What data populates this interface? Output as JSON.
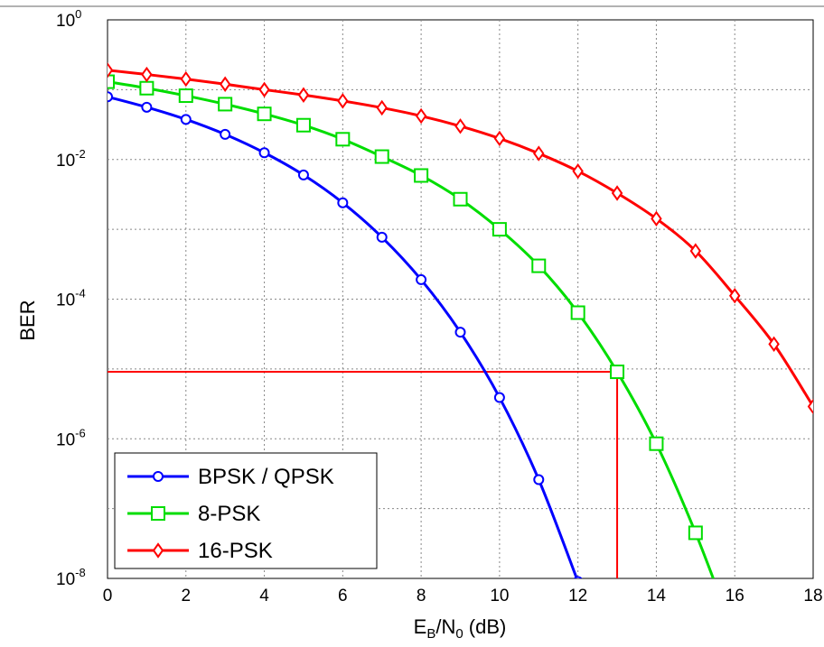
{
  "chart_data": {
    "type": "line",
    "xlabel": {
      "base": "E",
      "sub1": "B",
      "mid": "/N",
      "sub2": "0",
      "tail": " (dB)"
    },
    "ylabel": "BER",
    "xlim": [
      0,
      18
    ],
    "ylim": [
      1e-08,
      1
    ],
    "yscale": "log",
    "x_ticks": [
      0,
      2,
      4,
      6,
      8,
      10,
      12,
      14,
      16,
      18
    ],
    "y_ticks": [
      {
        "base": "10",
        "exp": "0",
        "value": 1
      },
      {
        "base": "10",
        "exp": "-2",
        "value": 0.01
      },
      {
        "base": "10",
        "exp": "-4",
        "value": 0.0001
      },
      {
        "base": "10",
        "exp": "-6",
        "value": 1e-06
      },
      {
        "base": "10",
        "exp": "-8",
        "value": 1e-08
      }
    ],
    "grid": true,
    "legend_position": "bottom-left",
    "series": [
      {
        "name": "BPSK / QPSK",
        "color": "#0000ff",
        "marker": "circle",
        "x": [
          0,
          1,
          2,
          3,
          4,
          5,
          6,
          7,
          8,
          9,
          10,
          11,
          12
        ],
        "y": [
          0.079,
          0.056,
          0.0375,
          0.0229,
          0.0125,
          0.006,
          0.0024,
          0.00077,
          0.00019,
          3.36e-05,
          3.9e-06,
          2.6e-07,
          9e-09
        ]
      },
      {
        "name": "8-PSK",
        "color": "#00dd00",
        "marker": "square",
        "x": [
          0,
          1,
          2,
          3,
          4,
          5,
          6,
          7,
          8,
          9,
          10,
          11,
          12,
          13,
          14,
          15,
          16
        ],
        "y": [
          0.13,
          0.105,
          0.082,
          0.062,
          0.045,
          0.031,
          0.0195,
          0.011,
          0.0059,
          0.0027,
          0.001,
          0.0003,
          6.4e-05,
          9.1e-06,
          8.5e-07,
          4.5e-08,
          1.5e-09
        ]
      },
      {
        "name": "16-PSK",
        "color": "#ff0000",
        "marker": "diamond",
        "x": [
          0,
          1,
          2,
          3,
          4,
          5,
          6,
          7,
          8,
          9,
          10,
          11,
          12,
          13,
          14,
          15,
          16,
          17,
          18
        ],
        "y": [
          0.19,
          0.165,
          0.142,
          0.12,
          0.1,
          0.084,
          0.069,
          0.055,
          0.042,
          0.03,
          0.02,
          0.0122,
          0.0068,
          0.0033,
          0.00142,
          0.00049,
          0.000112,
          2.27e-05,
          2.9e-06
        ]
      }
    ],
    "reference_lines": [
      {
        "type": "horizontal",
        "y": 9.1e-06,
        "x_from": 0,
        "x_to": 13,
        "color": "#ff0000"
      },
      {
        "type": "vertical",
        "x": 13,
        "y_from": 1e-08,
        "y_to": 9.1e-06,
        "color": "#ff0000"
      }
    ]
  }
}
